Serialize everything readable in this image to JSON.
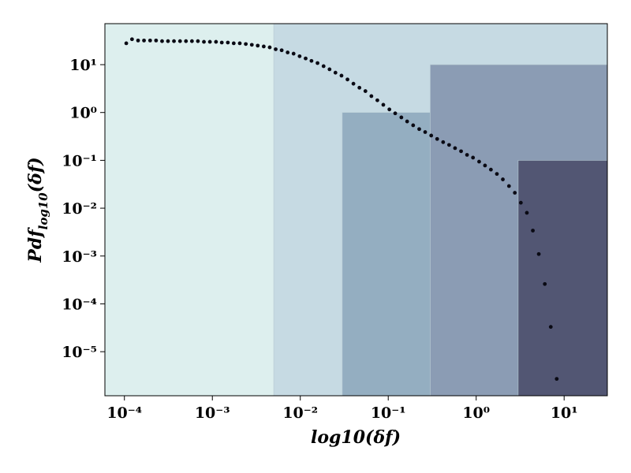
{
  "chart_data": {
    "type": "scatter",
    "xlabel": "log10(δf)",
    "ylabel": {
      "main": "Pdf",
      "sub": "log10",
      "tail": "(δf)"
    },
    "xscale": "log",
    "yscale": "log",
    "xlim": [
      6e-05,
      31
    ],
    "ylim": [
      1.2e-06,
      72
    ],
    "xticks": [
      {
        "value": 0.0001,
        "label": "10⁻⁴"
      },
      {
        "value": 0.001,
        "label": "10⁻³"
      },
      {
        "value": 0.01,
        "label": "10⁻²"
      },
      {
        "value": 0.1,
        "label": "10⁻¹"
      },
      {
        "value": 1,
        "label": "10⁰"
      },
      {
        "value": 10,
        "label": "10¹"
      }
    ],
    "yticks": [
      {
        "value": 1e-05,
        "label": "10⁻⁵"
      },
      {
        "value": 0.0001,
        "label": "10⁻⁴"
      },
      {
        "value": 0.001,
        "label": "10⁻³"
      },
      {
        "value": 0.01,
        "label": "10⁻²"
      },
      {
        "value": 0.1,
        "label": "10⁻¹"
      },
      {
        "value": 1,
        "label": "10⁰"
      },
      {
        "value": 10,
        "label": "10¹"
      }
    ],
    "regions": [
      {
        "x": [
          6e-05,
          0.005
        ],
        "y": [
          1.2e-06,
          72
        ],
        "color": "#ddefee"
      },
      {
        "x": [
          0.005,
          31
        ],
        "y": [
          1.2e-06,
          72
        ],
        "color": "#c6dae3"
      },
      {
        "x": [
          0.03,
          0.3
        ],
        "y": [
          1.2e-06,
          1
        ],
        "color": "#94aec1"
      },
      {
        "x": [
          0.3,
          31
        ],
        "y": [
          1.2e-06,
          10
        ],
        "color": "#8b9cb4"
      },
      {
        "x": [
          3,
          31
        ],
        "y": [
          1.2e-06,
          0.1
        ],
        "color": "#525673"
      }
    ],
    "color": "#0a0a14",
    "x": [
      0.000105,
      0.000122,
      0.000143,
      0.000167,
      0.000196,
      0.000229,
      0.000268,
      0.000313,
      0.000366,
      0.000429,
      0.000501,
      0.000586,
      0.000685,
      0.000802,
      0.000938,
      0.0011,
      0.00128,
      0.0015,
      0.00175,
      0.00205,
      0.0024,
      0.00281,
      0.00328,
      0.00384,
      0.00449,
      0.00525,
      0.00614,
      0.00718,
      0.00839,
      0.00982,
      0.0115,
      0.0134,
      0.0157,
      0.0184,
      0.0215,
      0.0251,
      0.0294,
      0.0344,
      0.0402,
      0.047,
      0.055,
      0.0643,
      0.0752,
      0.0879,
      0.103,
      0.12,
      0.141,
      0.164,
      0.192,
      0.225,
      0.263,
      0.308,
      0.36,
      0.421,
      0.492,
      0.575,
      0.673,
      0.787,
      0.92,
      1.08,
      1.26,
      1.47,
      1.72,
      2.01,
      2.36,
      2.75,
      3.22,
      3.77,
      4.41,
      5.15,
      6.03,
      7.05,
      8.24
    ],
    "y": [
      28,
      34,
      32,
      32,
      32,
      32,
      31,
      31,
      31,
      31,
      31,
      31,
      31,
      30,
      30,
      30,
      29,
      29,
      28,
      28,
      27,
      26,
      25,
      24,
      23,
      21,
      20,
      18,
      17,
      15,
      13.5,
      12,
      10.8,
      9.3,
      8,
      6.8,
      5.9,
      4.9,
      4.0,
      3.3,
      2.8,
      2.2,
      1.8,
      1.45,
      1.16,
      0.96,
      0.79,
      0.65,
      0.54,
      0.45,
      0.39,
      0.33,
      0.28,
      0.24,
      0.21,
      0.18,
      0.155,
      0.13,
      0.114,
      0.094,
      0.078,
      0.064,
      0.052,
      0.04,
      0.029,
      0.021,
      0.013,
      0.008,
      0.0034,
      0.0011,
      0.00026,
      3.3e-05,
      2.7e-06
    ]
  }
}
